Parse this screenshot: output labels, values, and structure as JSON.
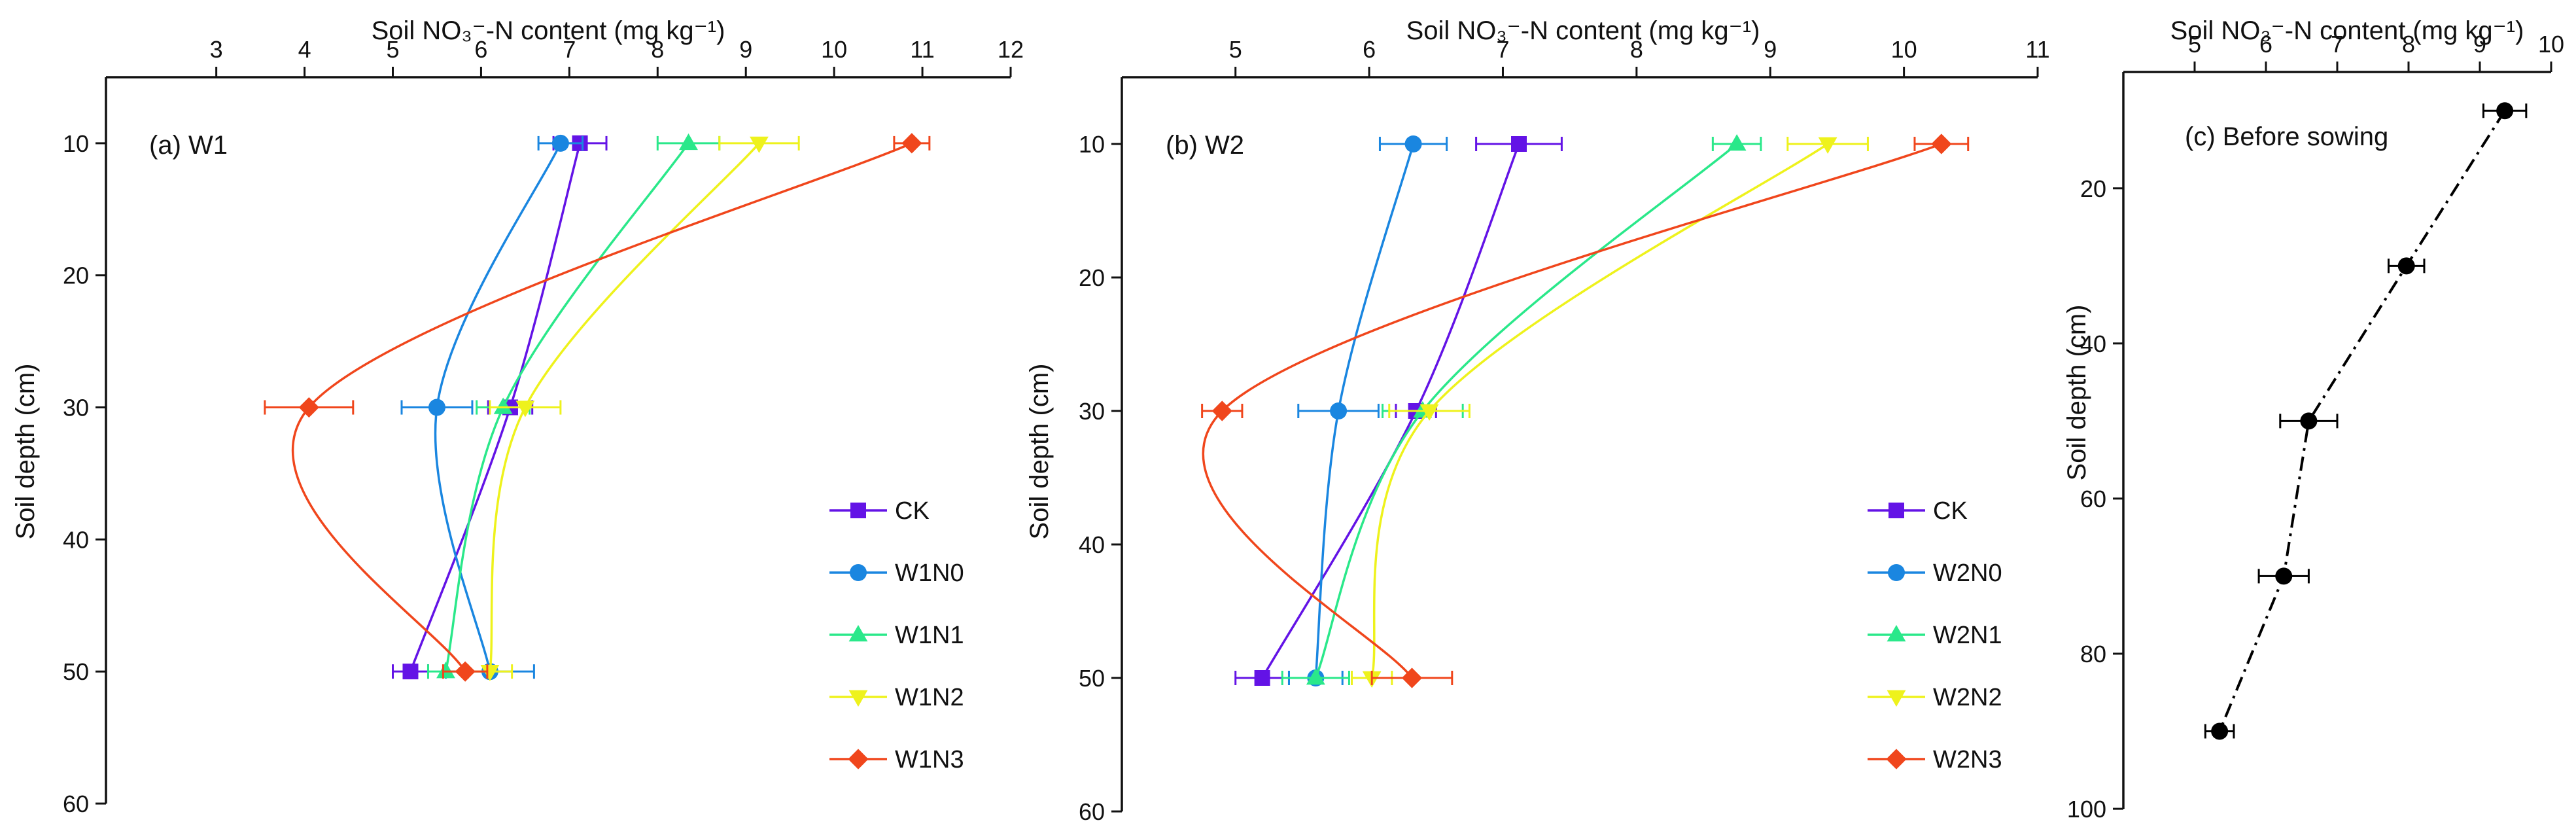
{
  "chart_data": [
    {
      "type": "line",
      "id": "panel_a",
      "panel_label": "(a)  W1",
      "x_title": "Soil NO₃⁻-N content (mg kg⁻¹)",
      "y_title": "Soil depth (cm)",
      "xlim": [
        1.75,
        12
      ],
      "x_ticks": [
        3,
        4,
        5,
        6,
        7,
        8,
        9,
        10,
        11,
        12
      ],
      "ylim": [
        5,
        60
      ],
      "y_ticks": [
        10,
        20,
        30,
        40,
        50,
        60
      ],
      "legend_position": "right",
      "series": [
        {
          "name": "CK",
          "color": "#6313e6",
          "marker": "square",
          "points": [
            {
              "depth": 10,
              "value": 7.12,
              "err": 0.3
            },
            {
              "depth": 30,
              "value": 6.33,
              "err": 0.25
            },
            {
              "depth": 50,
              "value": 5.2,
              "err": 0.2
            }
          ]
        },
        {
          "name": "W1N0",
          "color": "#1a86e0",
          "marker": "circle",
          "points": [
            {
              "depth": 10,
              "value": 6.9,
              "err": 0.25
            },
            {
              "depth": 30,
              "value": 5.5,
              "err": 0.4
            },
            {
              "depth": 50,
              "value": 6.1,
              "err": 0.5
            }
          ]
        },
        {
          "name": "W1N1",
          "color": "#2ae88a",
          "marker": "triangle-up",
          "points": [
            {
              "depth": 10,
              "value": 8.35,
              "err": 0.35
            },
            {
              "depth": 30,
              "value": 6.25,
              "err": 0.3
            },
            {
              "depth": 50,
              "value": 5.6,
              "err": 0.2
            }
          ]
        },
        {
          "name": "W1N2",
          "color": "#eef21c",
          "marker": "triangle-down",
          "points": [
            {
              "depth": 10,
              "value": 9.15,
              "err": 0.45
            },
            {
              "depth": 30,
              "value": 6.5,
              "err": 0.4
            },
            {
              "depth": 50,
              "value": 6.1,
              "err": 0.25
            }
          ]
        },
        {
          "name": "W1N3",
          "color": "#f0461c",
          "marker": "diamond",
          "points": [
            {
              "depth": 10,
              "value": 10.88,
              "err": 0.2
            },
            {
              "depth": 30,
              "value": 4.05,
              "err": 0.5
            },
            {
              "depth": 50,
              "value": 5.82,
              "err": 0.25
            }
          ]
        }
      ]
    },
    {
      "type": "line",
      "id": "panel_b",
      "panel_label": "(b)  W2",
      "x_title": "Soil NO₃⁻-N content (mg kg⁻¹)",
      "y_title": "Soil depth (cm)",
      "xlim": [
        4.15,
        11
      ],
      "x_ticks": [
        5,
        6,
        7,
        8,
        9,
        10,
        11
      ],
      "ylim": [
        5,
        60
      ],
      "y_ticks": [
        10,
        20,
        30,
        40,
        50,
        60
      ],
      "legend_position": "right",
      "series": [
        {
          "name": "CK",
          "color": "#6313e6",
          "marker": "square",
          "points": [
            {
              "depth": 10,
              "value": 7.12,
              "err": 0.32
            },
            {
              "depth": 30,
              "value": 6.35,
              "err": 0.15
            },
            {
              "depth": 50,
              "value": 5.2,
              "err": 0.2
            }
          ]
        },
        {
          "name": "W2N0",
          "color": "#1a86e0",
          "marker": "circle",
          "points": [
            {
              "depth": 10,
              "value": 6.33,
              "err": 0.25
            },
            {
              "depth": 30,
              "value": 5.77,
              "err": 0.3
            },
            {
              "depth": 50,
              "value": 5.6,
              "err": 0.2
            }
          ]
        },
        {
          "name": "W2N1",
          "color": "#2ae88a",
          "marker": "triangle-up",
          "points": [
            {
              "depth": 10,
              "value": 8.75,
              "err": 0.18
            },
            {
              "depth": 30,
              "value": 6.4,
              "err": 0.3
            },
            {
              "depth": 50,
              "value": 5.6,
              "err": 0.25
            }
          ]
        },
        {
          "name": "W2N2",
          "color": "#eef21c",
          "marker": "triangle-down",
          "points": [
            {
              "depth": 10,
              "value": 9.43,
              "err": 0.3
            },
            {
              "depth": 30,
              "value": 6.45,
              "err": 0.3
            },
            {
              "depth": 50,
              "value": 6.02,
              "err": 0.15
            }
          ]
        },
        {
          "name": "W2N3",
          "color": "#f0461c",
          "marker": "diamond",
          "points": [
            {
              "depth": 10,
              "value": 10.28,
              "err": 0.2
            },
            {
              "depth": 30,
              "value": 4.9,
              "err": 0.15
            },
            {
              "depth": 50,
              "value": 6.32,
              "err": 0.3
            }
          ]
        }
      ]
    },
    {
      "type": "line",
      "id": "panel_c",
      "panel_label": "(c)  Before sowing",
      "x_title": "Soil NO₃⁻-N content (mg kg⁻¹)",
      "y_title": "Soil depth (cm)",
      "xlim": [
        4.0,
        10
      ],
      "x_ticks": [
        5,
        6,
        7,
        8,
        9,
        10
      ],
      "ylim": [
        5,
        100
      ],
      "y_ticks": [
        20,
        40,
        60,
        80,
        100
      ],
      "series": [
        {
          "name": "Before sowing",
          "color": "#000000",
          "marker": "circle",
          "line_style": "dash-dot",
          "points": [
            {
              "depth": 10,
              "value": 9.35,
              "err": 0.3
            },
            {
              "depth": 30,
              "value": 7.97,
              "err": 0.25
            },
            {
              "depth": 50,
              "value": 6.6,
              "err": 0.4
            },
            {
              "depth": 70,
              "value": 6.25,
              "err": 0.35
            },
            {
              "depth": 90,
              "value": 5.35,
              "err": 0.2
            }
          ]
        }
      ]
    }
  ]
}
